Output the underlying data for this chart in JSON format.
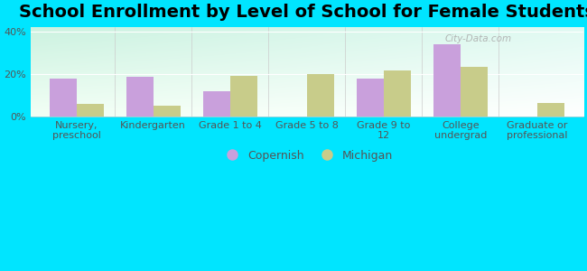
{
  "title": "School Enrollment by Level of School for Female Students",
  "categories": [
    "Nursery,\npreschool",
    "Kindergarten",
    "Grade 1 to 4",
    "Grade 5 to 8",
    "Grade 9 to\n12",
    "College\nundergrad",
    "Graduate or\nprofessional"
  ],
  "copernish": [
    18.0,
    18.5,
    12.0,
    0.0,
    18.0,
    34.0,
    0.0
  ],
  "michigan": [
    6.0,
    5.0,
    19.0,
    20.0,
    21.5,
    23.5,
    6.5
  ],
  "copernish_color": "#c9a0dc",
  "michigan_color": "#c8cc8a",
  "background_color": "#00e5ff",
  "ylim": [
    0,
    42
  ],
  "yticks": [
    0,
    20,
    40
  ],
  "ytick_labels": [
    "0%",
    "20%",
    "40%"
  ],
  "legend_copernish": "Copernish",
  "legend_michigan": "Michigan",
  "watermark": "City-Data.com",
  "title_fontsize": 14,
  "tick_fontsize": 8,
  "legend_fontsize": 9
}
